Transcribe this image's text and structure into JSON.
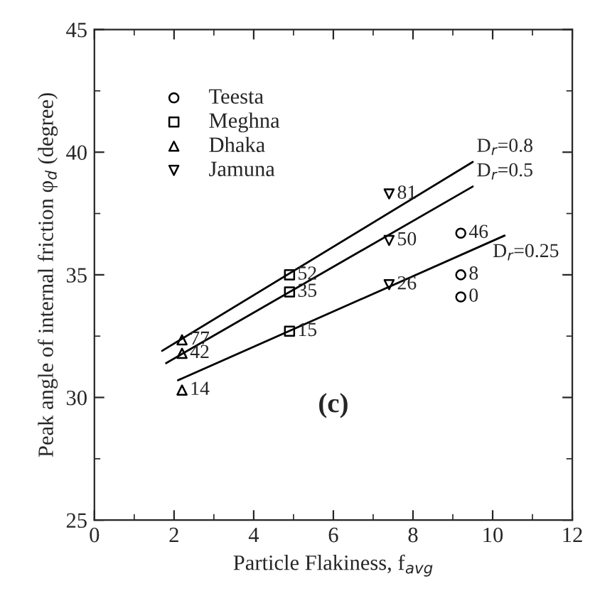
{
  "chart_data": {
    "type": "scatter",
    "xlabel": "Particle Flakiness, f$_{avg}$",
    "ylabel": "Peak angle of internal friction φ$_{d}$ (degree)",
    "xlim": [
      0,
      12
    ],
    "xticks": [
      0,
      2,
      4,
      6,
      8,
      10,
      12
    ],
    "ylim": [
      25,
      45
    ],
    "yticks": [
      25,
      30,
      35,
      40,
      45
    ],
    "legend": "top left",
    "grid": false,
    "annotations": [
      "(c)",
      {
        "text": "46",
        "x": 9.2,
        "y": 36.7
      },
      {
        "text": "8",
        "x": 9.2,
        "y": 35.0
      },
      {
        "text": "0",
        "x": 9.2,
        "y": 34.1
      },
      {
        "text": "52",
        "x": 4.9,
        "y": 35.0
      },
      {
        "text": "35",
        "x": 4.9,
        "y": 34.3
      },
      {
        "text": "15",
        "x": 4.9,
        "y": 32.7
      },
      {
        "text": "77",
        "x": 2.2,
        "y": 32.35
      },
      {
        "text": "42",
        "x": 2.2,
        "y": 31.8
      },
      {
        "text": "14",
        "x": 2.2,
        "y": 30.3
      },
      {
        "text": "81",
        "x": 7.4,
        "y": 38.3
      },
      {
        "text": "50",
        "x": 7.4,
        "y": 36.4
      },
      {
        "text": "26",
        "x": 7.4,
        "y": 34.6
      }
    ],
    "series": [
      {
        "name": "Teesta",
        "marker": "circle",
        "color": "#000000",
        "x": [
          9.2,
          9.2,
          9.2
        ],
        "values": [
          36.7,
          35.0,
          34.1
        ]
      },
      {
        "name": "Meghna",
        "marker": "square",
        "color": "#000000",
        "x": [
          4.9,
          4.9,
          4.9
        ],
        "values": [
          35.0,
          34.3,
          32.7
        ]
      },
      {
        "name": "Dhaka",
        "marker": "triangle",
        "color": "#000000",
        "x": [
          2.2,
          2.2,
          2.2
        ],
        "values": [
          32.35,
          31.8,
          30.3
        ]
      },
      {
        "name": "Jamuna",
        "marker": "triangle_down",
        "color": "#000000",
        "x": [
          7.4,
          7.4,
          7.4
        ],
        "values": [
          38.3,
          36.4,
          34.6
        ]
      },
      {
        "name": "D$_{r}$=0.8",
        "type": "line",
        "line_style": "solid",
        "marker": "none",
        "color": "#000000",
        "x": [
          1.7,
          9.5
        ],
        "values": [
          31.9,
          39.6
        ]
      },
      {
        "name": "D$_{r}$=0.5",
        "type": "line",
        "line_style": "solid",
        "marker": "none",
        "color": "#000000",
        "x": [
          1.8,
          9.5
        ],
        "values": [
          31.4,
          38.6
        ]
      },
      {
        "name": "D$_{r}$=0.25",
        "type": "line",
        "line_style": "solid",
        "marker": "none",
        "color": "#000000",
        "x": [
          2.1,
          10.3
        ],
        "values": [
          30.7,
          36.6
        ]
      }
    ]
  }
}
